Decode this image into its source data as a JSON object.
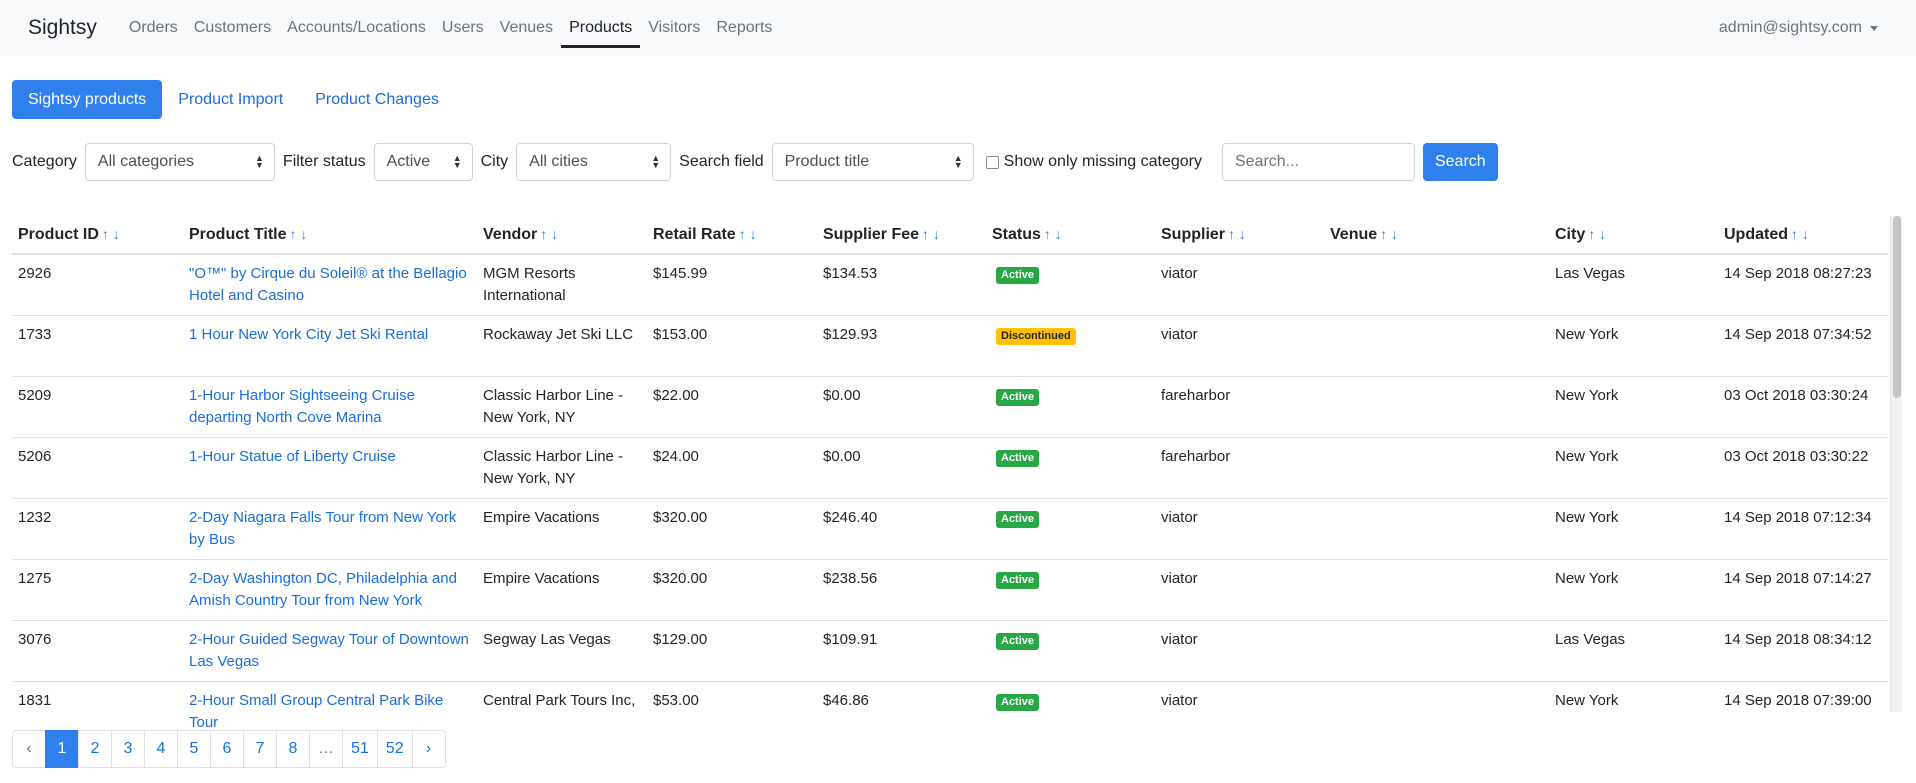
{
  "navbar": {
    "brand": "Sightsy",
    "links": [
      "Orders",
      "Customers",
      "Accounts/Locations",
      "Users",
      "Venues",
      "Products",
      "Visitors",
      "Reports"
    ],
    "active_link": "Products",
    "user": "admin@sightsy.com"
  },
  "subtabs": [
    "Sightsy products",
    "Product Import",
    "Product Changes"
  ],
  "filters": {
    "category_label": "Category",
    "category_value": "All categories",
    "status_label": "Filter status",
    "status_value": "Active",
    "city_label": "City",
    "city_value": "All cities",
    "search_field_label": "Search field",
    "search_field_value": "Product title",
    "missing_category_label": "Show only missing category",
    "missing_category_checked": false,
    "search_placeholder": "Search...",
    "search_button": "Search"
  },
  "table": {
    "columns": [
      "Product ID",
      "Product Title",
      "Vendor",
      "Retail Rate",
      "Supplier Fee",
      "Status",
      "Supplier",
      "Venue",
      "City",
      "Updated"
    ],
    "rows": [
      {
        "id": "2926",
        "title": "\"O™\" by Cirque du Soleil® at the Bellagio Hotel and Casino",
        "vendor": "MGM Resorts International",
        "retail": "$145.99",
        "fee": "$134.53",
        "status": "Active",
        "supplier": "viator",
        "venue": "",
        "city": "Las Vegas",
        "updated": "14 Sep 2018 08:27:23"
      },
      {
        "id": "1733",
        "title": "1 Hour New York City Jet Ski Rental",
        "vendor": "Rockaway Jet Ski LLC",
        "retail": "$153.00",
        "fee": "$129.93",
        "status": "Discontinued",
        "supplier": "viator",
        "venue": "",
        "city": "New York",
        "updated": "14 Sep 2018 07:34:52"
      },
      {
        "id": "5209",
        "title": "1-Hour Harbor Sightseeing Cruise departing North Cove Marina",
        "vendor": "Classic Harbor Line - New York, NY",
        "retail": "$22.00",
        "fee": "$0.00",
        "status": "Active",
        "supplier": "fareharbor",
        "venue": "",
        "city": "New York",
        "updated": "03 Oct 2018 03:30:24"
      },
      {
        "id": "5206",
        "title": "1-Hour Statue of Liberty Cruise",
        "vendor": "Classic Harbor Line - New York, NY",
        "retail": "$24.00",
        "fee": "$0.00",
        "status": "Active",
        "supplier": "fareharbor",
        "venue": "",
        "city": "New York",
        "updated": "03 Oct 2018 03:30:22"
      },
      {
        "id": "1232",
        "title": "2-Day Niagara Falls Tour from New York by Bus",
        "vendor": "Empire Vacations",
        "retail": "$320.00",
        "fee": "$246.40",
        "status": "Active",
        "supplier": "viator",
        "venue": "",
        "city": "New York",
        "updated": "14 Sep 2018 07:12:34"
      },
      {
        "id": "1275",
        "title": "2-Day Washington DC, Philadelphia and Amish Country Tour from New York",
        "vendor": "Empire Vacations",
        "retail": "$320.00",
        "fee": "$238.56",
        "status": "Active",
        "supplier": "viator",
        "venue": "",
        "city": "New York",
        "updated": "14 Sep 2018 07:14:27"
      },
      {
        "id": "3076",
        "title": "2-Hour Guided Segway Tour of Downtown Las Vegas",
        "vendor": "Segway Las Vegas",
        "retail": "$129.00",
        "fee": "$109.91",
        "status": "Active",
        "supplier": "viator",
        "venue": "",
        "city": "Las Vegas",
        "updated": "14 Sep 2018 08:34:12"
      },
      {
        "id": "1831",
        "title": "2-Hour Small Group Central Park Bike Tour",
        "vendor": "Central Park Tours Inc,",
        "retail": "$53.00",
        "fee": "$46.86",
        "status": "Active",
        "supplier": "viator",
        "venue": "",
        "city": "New York",
        "updated": "14 Sep 2018 07:39:00"
      }
    ]
  },
  "pagination": {
    "prev": "‹",
    "pages": [
      "1",
      "2",
      "3",
      "4",
      "5",
      "6",
      "7",
      "8",
      "…",
      "51",
      "52"
    ],
    "active": "1",
    "next": "›"
  }
}
